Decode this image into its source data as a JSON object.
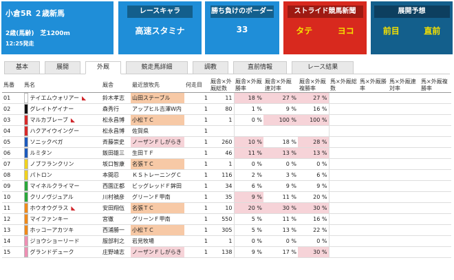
{
  "race": {
    "title": "小倉5R ２歳新馬",
    "sub": "2歳(馬齢)　芝1200m",
    "time": "12:25発走"
  },
  "panels": [
    {
      "header": "レースキャラ",
      "value": "高速スタミナ"
    },
    {
      "header": "勝ち負けのボーダー",
      "value": "33"
    },
    {
      "header": "ストライド競馬新聞",
      "values": [
        "タテ",
        "ヨコ"
      ]
    },
    {
      "header": "展開予想",
      "values": [
        "前目",
        "直前"
      ]
    }
  ],
  "tabs": [
    "基本",
    "展開",
    "外厩",
    "競走馬詳細",
    "調教",
    "直前情報",
    "レース結果"
  ],
  "active_tab": "外厩",
  "columns": [
    "馬番",
    "馬名",
    "厩舎",
    "最近放牧先",
    "何走目",
    "厩舎×外厩総数",
    "厩舎×外厩勝率",
    "厩舎×外厩連対率",
    "厩舎×外厩複勝率",
    "馬×外厩総数",
    "馬×外厩勝率",
    "馬×外厩連対率",
    "馬×外厩複勝率"
  ],
  "rows": [
    {
      "num": "01",
      "name": "テイエムウォリアー",
      "stable": "鈴木孝志",
      "farm": "山田ステーブル",
      "run": "1",
      "total": "11",
      "win": "18 %",
      "ren": "27 %",
      "fuku": "27 %",
      "color": "#ffffff",
      "flag": true,
      "fhl": "o",
      "hl": [
        1,
        1,
        1
      ]
    },
    {
      "num": "02",
      "name": "グレイトゲイナー",
      "stable": "森秀行",
      "farm": "アップヒル吉澤W内",
      "run": "1",
      "total": "80",
      "win": "1 %",
      "ren": "9 %",
      "fuku": "16 %",
      "color": "#111111",
      "flag": false,
      "fhl": "",
      "hl": [
        0,
        0,
        0
      ]
    },
    {
      "num": "03",
      "name": "マルカブレーブ",
      "stable": "松永昌博",
      "farm": "小松ＴＣ",
      "run": "1",
      "total": "1",
      "win": "0 %",
      "ren": "100 %",
      "fuku": "100 %",
      "color": "#d82a2a",
      "flag": true,
      "fhl": "o",
      "hl": [
        0,
        1,
        1
      ]
    },
    {
      "num": "04",
      "name": "ハクアイウイングー",
      "stable": "松永昌博",
      "farm": "佐賀県",
      "run": "1",
      "total": "",
      "win": "",
      "ren": "",
      "fuku": "",
      "color": "#d82a2a",
      "flag": false,
      "fhl": "",
      "hl": [
        0,
        0,
        0
      ]
    },
    {
      "num": "05",
      "name": "ソニックペガ",
      "stable": "斉藤崇史",
      "farm": "ノーザンＦしがらき",
      "run": "1",
      "total": "260",
      "win": "10 %",
      "ren": "18 %",
      "fuku": "28 %",
      "color": "#1d5bbd",
      "flag": false,
      "fhl": "p",
      "hl": [
        1,
        0,
        1
      ]
    },
    {
      "num": "06",
      "name": "ルミタン",
      "stable": "飯田雄三",
      "farm": "生田ＴＦ",
      "run": "1",
      "total": "46",
      "win": "11 %",
      "ren": "13 %",
      "fuku": "13 %",
      "color": "#1d5bbd",
      "flag": false,
      "fhl": "",
      "hl": [
        1,
        1,
        1
      ]
    },
    {
      "num": "07",
      "name": "ノブフランクリン",
      "stable": "坂口智康",
      "farm": "名張ＴＣ",
      "run": "1",
      "total": "1",
      "win": "0 %",
      "ren": "0 %",
      "fuku": "0 %",
      "color": "#f0d21f",
      "flag": false,
      "fhl": "o",
      "hl": [
        0,
        0,
        0
      ]
    },
    {
      "num": "08",
      "name": "パトロン",
      "stable": "本間忍",
      "farm": "ＫＳトレーニングＣ",
      "run": "1",
      "total": "116",
      "win": "2 %",
      "ren": "3 %",
      "fuku": "6 %",
      "color": "#f0d21f",
      "flag": false,
      "fhl": "",
      "hl": [
        0,
        0,
        0
      ]
    },
    {
      "num": "09",
      "name": "マイネルクライマー",
      "stable": "西園正都",
      "farm": "ビッグレッドＦ鉾田",
      "run": "1",
      "total": "34",
      "win": "6 %",
      "ren": "9 %",
      "fuku": "9 %",
      "color": "#2aa83a",
      "flag": false,
      "fhl": "",
      "hl": [
        0,
        0,
        0
      ]
    },
    {
      "num": "10",
      "name": "クリノヴジュアル",
      "stable": "川村禎彦",
      "farm": "グリーンＦ甲南",
      "run": "1",
      "total": "35",
      "win": "9 %",
      "ren": "11 %",
      "fuku": "20 %",
      "color": "#2aa83a",
      "flag": false,
      "fhl": "",
      "hl": [
        1,
        0,
        0
      ]
    },
    {
      "num": "11",
      "name": "ホウオウグラス",
      "stable": "安田翔伍",
      "farm": "名張ＴＣ",
      "run": "1",
      "total": "10",
      "win": "20 %",
      "ren": "30 %",
      "fuku": "30 %",
      "color": "#f08a1a",
      "flag": true,
      "fhl": "o",
      "hl": [
        1,
        1,
        1
      ]
    },
    {
      "num": "12",
      "name": "マイファンキー",
      "stable": "宮徹",
      "farm": "グリーンＦ甲南",
      "run": "1",
      "total": "550",
      "win": "5 %",
      "ren": "11 %",
      "fuku": "16 %",
      "color": "#f08a1a",
      "flag": false,
      "fhl": "",
      "hl": [
        0,
        0,
        0
      ]
    },
    {
      "num": "13",
      "name": "ホッコーアカツキ",
      "stable": "西浦勝一",
      "farm": "小松ＴＣ",
      "run": "1",
      "total": "305",
      "win": "5 %",
      "ren": "13 %",
      "fuku": "22 %",
      "color": "#f08a1a",
      "flag": false,
      "fhl": "o",
      "hl": [
        0,
        0,
        0
      ]
    },
    {
      "num": "14",
      "name": "ジョウショーリード",
      "stable": "服部利之",
      "farm": "岩見牧場",
      "run": "1",
      "total": "1",
      "win": "0 %",
      "ren": "0 %",
      "fuku": "0 %",
      "color": "#ee8fb3",
      "flag": false,
      "fhl": "",
      "hl": [
        0,
        0,
        0
      ]
    },
    {
      "num": "15",
      "name": "グランドデューク",
      "stable": "庄野靖志",
      "farm": "ノーザンＦしがらき",
      "run": "1",
      "total": "138",
      "win": "9 %",
      "ren": "17 %",
      "fuku": "30 %",
      "color": "#ee8fb3",
      "flag": false,
      "fhl": "p",
      "hl": [
        0,
        0,
        1
      ]
    }
  ],
  "colors": {
    "blue": "#1f8ed8",
    "red": "#d8291e",
    "orange_hl": "#f7c9a6",
    "pink_hl": "#f6d3d8"
  }
}
